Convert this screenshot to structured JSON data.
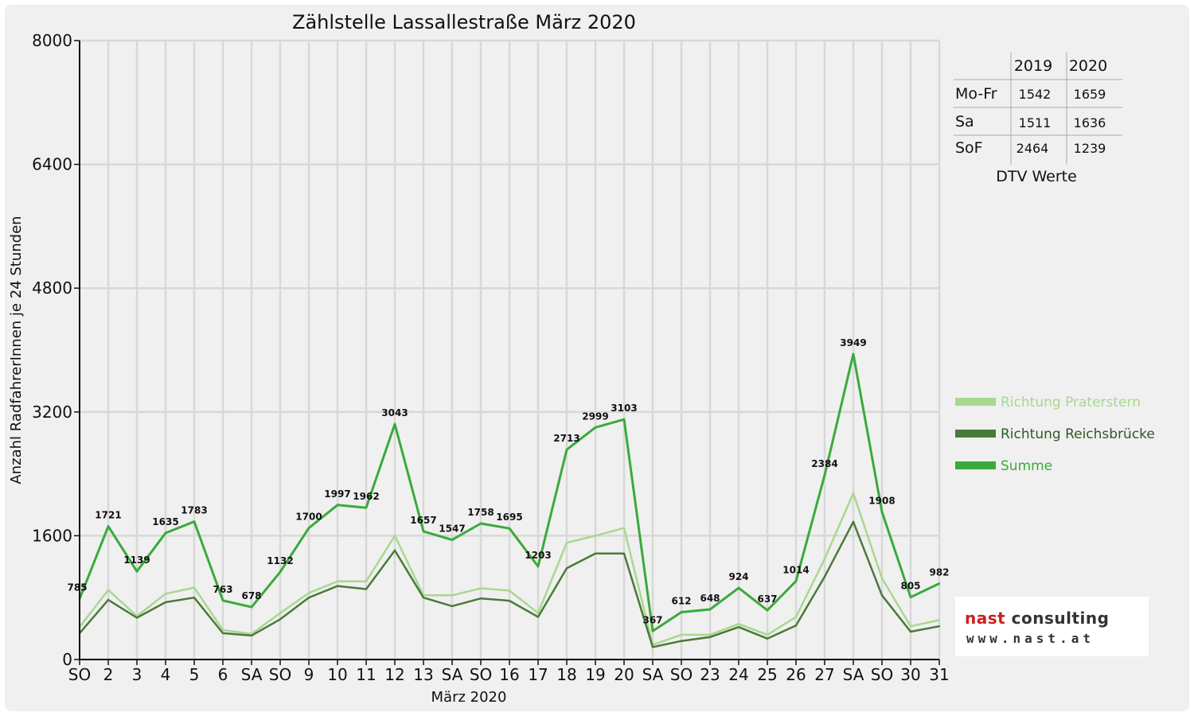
{
  "chart_data": {
    "type": "line",
    "title": "Zählstelle Lassallestraße März 2020",
    "xlabel": "März 2020",
    "ylabel": "Anzahl RadfahrerInnen je 24 Stunden",
    "ylim": [
      0,
      8000
    ],
    "yticks": [
      "0",
      "1600",
      "3200",
      "4800",
      "6400",
      "8000"
    ],
    "grid": true,
    "legend_position": "right",
    "categories": [
      "SO",
      "2",
      "3",
      "4",
      "5",
      "6",
      "SA",
      "SO",
      "9",
      "10",
      "11",
      "12",
      "13",
      "SA",
      "SO",
      "16",
      "17",
      "18",
      "19",
      "20",
      "SA",
      "SO",
      "23",
      "24",
      "25",
      "26",
      "27",
      "SA",
      "SO",
      "30",
      "31"
    ],
    "weekend_color": "#ff0000",
    "series": [
      {
        "name": "Richtung Praterstern",
        "color": "#a8d890",
        "values": [
          420,
          900,
          560,
          850,
          930,
          380,
          330,
          600,
          860,
          1010,
          1010,
          1600,
          830,
          830,
          920,
          890,
          600,
          1510,
          1600,
          1700,
          190,
          320,
          320,
          460,
          320,
          550,
          1300,
          2150,
          1050,
          430,
          510
        ]
      },
      {
        "name": "Richtung Reichsbrücke",
        "color": "#4a7a3a",
        "values": [
          340,
          770,
          540,
          740,
          800,
          340,
          310,
          520,
          800,
          950,
          910,
          1410,
          800,
          690,
          790,
          760,
          550,
          1180,
          1370,
          1370,
          160,
          240,
          290,
          420,
          270,
          440,
          1070,
          1780,
          830,
          360,
          430
        ]
      },
      {
        "name": "Summe",
        "color": "#3aaa3a",
        "values": [
          785,
          1721,
          1139,
          1635,
          1783,
          763,
          678,
          1132,
          1700,
          1997,
          1962,
          3043,
          1657,
          1547,
          1758,
          1695,
          1203,
          2713,
          2999,
          3103,
          367,
          612,
          648,
          924,
          637,
          1014,
          2384,
          3949,
          1908,
          805,
          982
        ],
        "labels": [
          "785",
          "1721",
          "1139",
          "1635",
          "1783",
          "763",
          "678",
          "1132",
          "1700",
          "1997",
          "1962",
          "3043",
          "1657",
          "1547",
          "1758",
          "1695",
          "1203",
          "2713",
          "2999",
          "3103",
          "367",
          "612",
          "648",
          "924",
          "637",
          "1014",
          "2384",
          "3949",
          "1908",
          "805",
          "982"
        ]
      }
    ]
  },
  "dtv_table": {
    "caption": "DTV Werte",
    "columns": [
      "2019",
      "2020"
    ],
    "rows": [
      {
        "label": "Mo-Fr",
        "v2019": "1542",
        "v2020": "1659"
      },
      {
        "label": "Sa",
        "v2019": "1511",
        "v2020": "1636"
      },
      {
        "label": "SoF",
        "v2019": "2464",
        "v2020": "1239"
      }
    ]
  },
  "logo": {
    "name_part1": "nast",
    "name_part2": " consulting",
    "url": "www.nast.at"
  }
}
